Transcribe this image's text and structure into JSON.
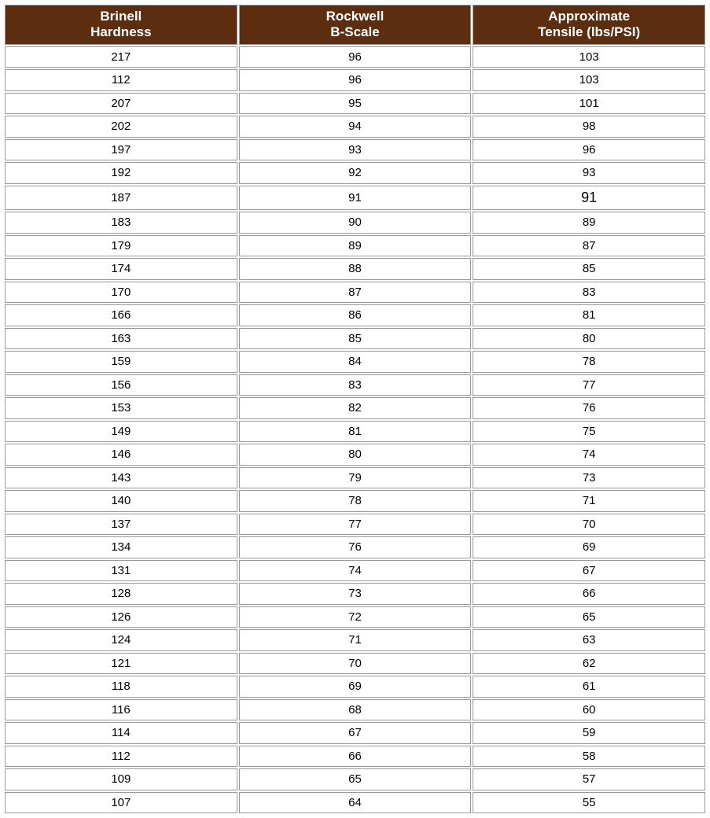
{
  "table": {
    "header_bg": "#5c2e0f",
    "header_text_color": "#ffffff",
    "cell_bg": "#ffffff",
    "cell_text_color": "#000000",
    "border_color": "#999999",
    "columns": [
      {
        "line1": "Brinell",
        "line2": "Hardness"
      },
      {
        "line1": "Rockwell",
        "line2": "B-Scale"
      },
      {
        "line1": "Approximate",
        "line2": "Tensile (lbs/PSI)"
      }
    ],
    "rows": [
      [
        "217",
        "96",
        "103"
      ],
      [
        "112",
        "96",
        "103"
      ],
      [
        "207",
        "95",
        "101"
      ],
      [
        "202",
        "94",
        "98"
      ],
      [
        "197",
        "93",
        "96"
      ],
      [
        "192",
        "92",
        "93"
      ],
      [
        "187",
        "91",
        "91"
      ],
      [
        "183",
        "90",
        "89"
      ],
      [
        "179",
        "89",
        "87"
      ],
      [
        "174",
        "88",
        "85"
      ],
      [
        "170",
        "87",
        "83"
      ],
      [
        "166",
        "86",
        "81"
      ],
      [
        "163",
        "85",
        "80"
      ],
      [
        "159",
        "84",
        "78"
      ],
      [
        "156",
        "83",
        "77"
      ],
      [
        "153",
        "82",
        "76"
      ],
      [
        "149",
        "81",
        "75"
      ],
      [
        "146",
        "80",
        "74"
      ],
      [
        "143",
        "79",
        "73"
      ],
      [
        "140",
        "78",
        "71"
      ],
      [
        "137",
        "77",
        "70"
      ],
      [
        "134",
        "76",
        "69"
      ],
      [
        "131",
        "74",
        "67"
      ],
      [
        "128",
        "73",
        "66"
      ],
      [
        "126",
        "72",
        "65"
      ],
      [
        "124",
        "71",
        "63"
      ],
      [
        "121",
        "70",
        "62"
      ],
      [
        "118",
        "69",
        "61"
      ],
      [
        "116",
        "68",
        "60"
      ],
      [
        "114",
        "67",
        "59"
      ],
      [
        "112",
        "66",
        "58"
      ],
      [
        "109",
        "65",
        "57"
      ],
      [
        "107",
        "64",
        "55"
      ]
    ],
    "large_cell": {
      "row": 6,
      "col": 2
    }
  }
}
